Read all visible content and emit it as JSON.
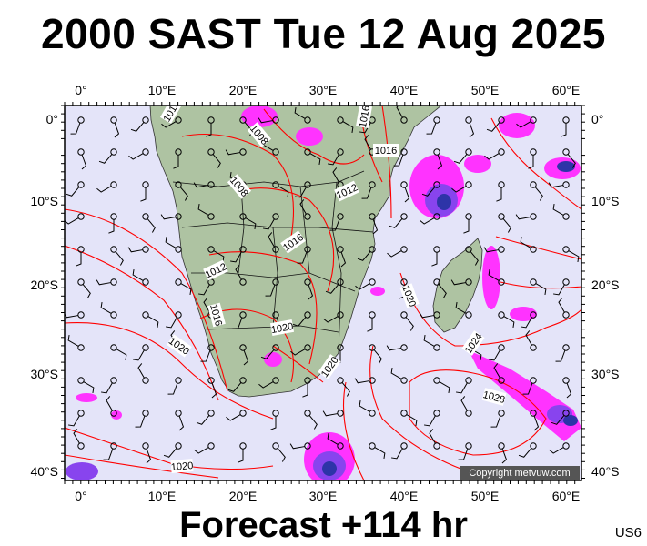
{
  "title": "2000 SAST Tue 12 Aug 2025",
  "footer": "Forecast +114 hr",
  "chart_code": "US6",
  "copyright": "Copyright metvuw.com",
  "axes": {
    "lon_ticks": [
      "0°",
      "10°E",
      "20°E",
      "30°E",
      "40°E",
      "50°E",
      "60°E"
    ],
    "lat_ticks": [
      "0°",
      "10°S",
      "20°S",
      "30°S",
      "40°S"
    ]
  },
  "isobar_labels": [
    "1016",
    "1008",
    "1016",
    "1012",
    "1016",
    "1012",
    "1016",
    "1020",
    "1020",
    "1020",
    "1020",
    "1024",
    "1028",
    "1020",
    "1016"
  ],
  "colors": {
    "ocean": "#e4e4f9",
    "land": "#aec3a2",
    "isobar": "#ff0000",
    "rain_magenta": "#ff33ff",
    "rain_purple": "#8844ee",
    "rain_blue": "#2d34a8",
    "border": "#000000",
    "wind_barb": "#000000"
  }
}
